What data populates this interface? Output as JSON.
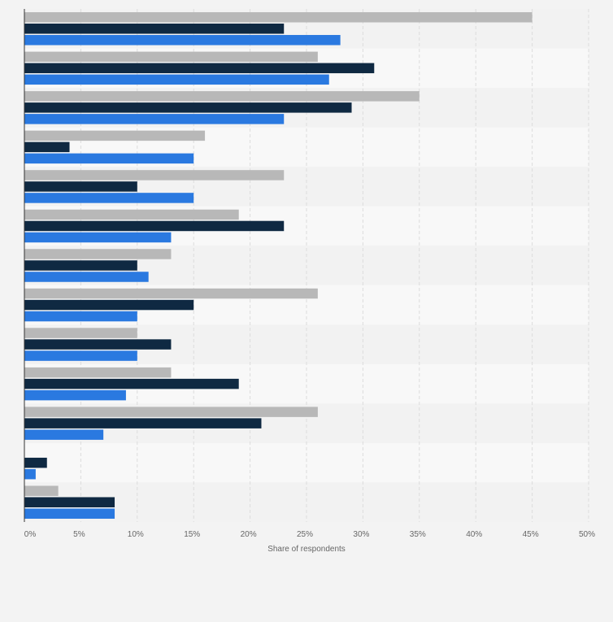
{
  "chart_data": {
    "type": "bar",
    "orientation": "horizontal",
    "title": "",
    "xlabel": "Share of respondents",
    "ylabel": "",
    "xlim": [
      0,
      50
    ],
    "x_ticks": [
      "0%",
      "5%",
      "10%",
      "15%",
      "20%",
      "25%",
      "30%",
      "35%",
      "40%",
      "45%",
      "50%"
    ],
    "tick_values": [
      0,
      5,
      10,
      15,
      20,
      25,
      30,
      35,
      40,
      45,
      50
    ],
    "grid": true,
    "legend": "none",
    "category_count": 13,
    "series": [
      {
        "color": "#b8b8b8",
        "values": [
          45,
          26,
          35,
          16,
          23,
          19,
          13,
          26,
          10,
          13,
          26,
          0,
          3
        ]
      },
      {
        "color": "#0f2942",
        "values": [
          23,
          31,
          29,
          4,
          10,
          23,
          10,
          15,
          13,
          19,
          21,
          2,
          8
        ]
      },
      {
        "color": "#2a79e0",
        "values": [
          28,
          27,
          23,
          15,
          15,
          13,
          11,
          10,
          10,
          9,
          7,
          1,
          8
        ]
      }
    ]
  }
}
